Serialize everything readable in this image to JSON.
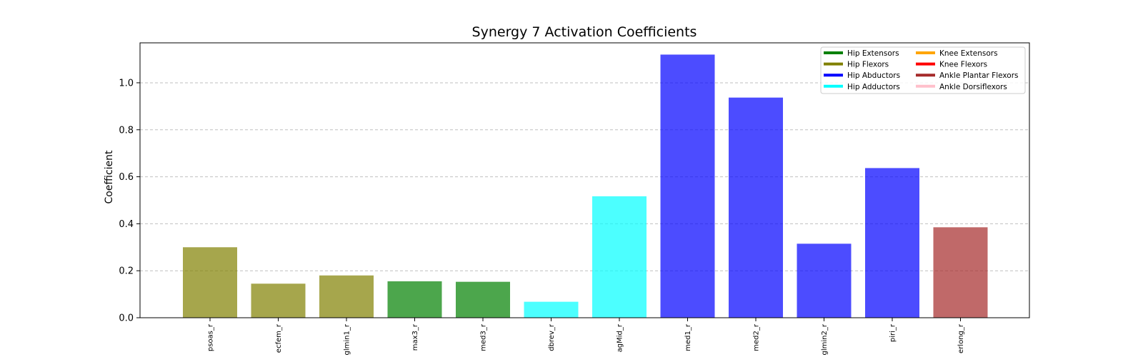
{
  "chart_data": {
    "type": "bar",
    "title": "Synergy 7 Activation Coefficients",
    "ylabel": "Coefficient",
    "xlabel": "",
    "ylim": [
      0,
      1.17
    ],
    "yticks": [
      "0.0",
      "0.2",
      "0.4",
      "0.6",
      "0.8",
      "1.0"
    ],
    "grid": "y-dashed",
    "legend_position": "top-right",
    "categories": [
      "psoas_r",
      "ecfem_r",
      "glmin1_r",
      "max3_r",
      "med3_r",
      "dbrev_r",
      "agMid_r",
      "med1_r",
      "med2_r",
      "glmin2_r",
      "piri_r",
      "erlong_r"
    ],
    "values": [
      0.3,
      0.145,
      0.18,
      0.155,
      0.153,
      0.068,
      0.517,
      1.12,
      0.937,
      0.315,
      0.637,
      0.385
    ],
    "groups": [
      "Hip Flexors",
      "Hip Flexors",
      "Hip Flexors",
      "Hip Extensors",
      "Hip Extensors",
      "Hip Adductors",
      "Hip Adductors",
      "Hip Abductors",
      "Hip Abductors",
      "Hip Abductors",
      "Hip Abductors",
      "Ankle Plantar Flexors"
    ],
    "legend": [
      {
        "name": "Hip Extensors",
        "color": "#008000"
      },
      {
        "name": "Hip Flexors",
        "color": "#808000"
      },
      {
        "name": "Hip Abductors",
        "color": "#0000ff"
      },
      {
        "name": "Hip Adductors",
        "color": "#00ffff"
      },
      {
        "name": "Knee Extensors",
        "color": "#ffa500"
      },
      {
        "name": "Knee Flexors",
        "color": "#ff0000"
      },
      {
        "name": "Ankle Plantar Flexors",
        "color": "#a52a2a"
      },
      {
        "name": "Ankle Dorsiflexors",
        "color": "#ffc0cb"
      }
    ]
  }
}
